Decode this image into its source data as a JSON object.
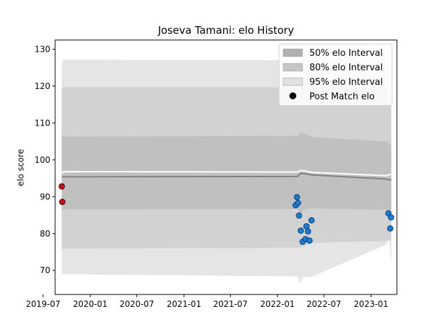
{
  "chart_data": {
    "type": "line",
    "title": "Joseva Tamani: elo History",
    "xlabel": "",
    "ylabel": "elo score",
    "xlim": [
      "2019-08-17",
      "2023-04-12"
    ],
    "ylim": [
      63.5,
      132.5
    ],
    "x_ticks": [
      "2019-07",
      "2020-01",
      "2020-07",
      "2021-01",
      "2021-07",
      "2022-01",
      "2022-07",
      "2023-01"
    ],
    "x_tick_dates": [
      "2019-07-01",
      "2020-01-01",
      "2020-07-01",
      "2021-01-01",
      "2021-07-01",
      "2022-01-01",
      "2022-07-01",
      "2023-01-01"
    ],
    "y_ticks": [
      70,
      80,
      90,
      100,
      110,
      120,
      130
    ],
    "legend_position": "top-right",
    "legend": [
      {
        "label": "50% elo Interval",
        "kind": "patch",
        "color": "#b0b0b0"
      },
      {
        "label": "80% elo Interval",
        "kind": "patch",
        "color": "#c6c6c6"
      },
      {
        "label": "95% elo Interval",
        "kind": "patch",
        "color": "#e2e2e2"
      },
      {
        "label": "Post Match elo",
        "kind": "marker",
        "color": "#000000"
      }
    ],
    "bands": [
      {
        "name": "95% elo Interval",
        "color": "#e5e5e5",
        "x": [
          "2019-09-12",
          "2019-09-20",
          "2022-03-20",
          "2022-04-01",
          "2022-04-08",
          "2022-05-15",
          "2023-03-01",
          "2023-03-12",
          "2023-03-21"
        ],
        "upper": [
          126.0,
          127.2,
          127.0,
          127.3,
          127.3,
          127.0,
          126.8,
          122.0,
          121.8
        ],
        "lower": [
          69.2,
          69.0,
          68.4,
          66.2,
          68.2,
          68.3,
          77.0,
          78.5,
          72.0
        ]
      },
      {
        "name": "80% elo Interval",
        "color": "#d2d2d2",
        "x": [
          "2019-09-12",
          "2019-09-20",
          "2022-03-20",
          "2022-04-08",
          "2022-05-15",
          "2023-03-01",
          "2023-03-12",
          "2023-03-21"
        ],
        "upper": [
          119.7,
          119.7,
          119.7,
          119.9,
          119.7,
          119.3,
          117.0,
          116.8
        ],
        "lower": [
          75.8,
          75.9,
          76.2,
          76.3,
          77.5,
          78.0,
          78.2,
          78.3
        ]
      },
      {
        "name": "50% elo Interval",
        "color": "#c0c0c0",
        "x": [
          "2019-09-12",
          "2019-09-20",
          "2022-03-20",
          "2022-04-01",
          "2022-04-15",
          "2022-05-15",
          "2023-03-01",
          "2023-03-12",
          "2023-03-21"
        ],
        "upper": [
          106.8,
          106.3,
          106.5,
          107.3,
          107.2,
          106.2,
          105.0,
          104.5,
          104.0
        ],
        "lower": [
          86.2,
          86.6,
          86.7,
          85.5,
          86.5,
          86.8,
          86.5,
          86.3,
          86.5
        ]
      }
    ],
    "series": [
      {
        "type": "line",
        "color": "#ffffff",
        "x": [
          "2019-09-12",
          "2019-09-22",
          "2022-03-20",
          "2022-04-01",
          "2022-04-20",
          "2022-05-15",
          "2023-03-01",
          "2023-03-12",
          "2023-03-21"
        ],
        "values": [
          96.5,
          96.8,
          96.7,
          97.1,
          97.0,
          96.6,
          95.7,
          96.0,
          96.0
        ]
      },
      {
        "type": "line",
        "color": "#808080",
        "x": [
          "2019-09-12",
          "2019-09-22",
          "2022-03-20",
          "2022-04-01",
          "2022-04-20",
          "2022-05-15",
          "2023-03-01",
          "2023-03-12",
          "2023-03-21"
        ],
        "values": [
          95.4,
          95.4,
          95.5,
          96.3,
          96.2,
          95.9,
          94.8,
          94.6,
          94.5
        ]
      },
      {
        "name": "Post Match elo",
        "type": "scatter",
        "points": [
          {
            "x": "2019-09-12",
            "y": 92.8,
            "color": "#d0121b",
            "edge": "#2a0000"
          },
          {
            "x": "2019-09-14",
            "y": 88.6,
            "color": "#d0121b",
            "edge": "#2a0000"
          },
          {
            "x": "2022-03-13",
            "y": 87.7,
            "color": "#1f7ec4",
            "edge": "#003c8f"
          },
          {
            "x": "2022-03-18",
            "y": 89.9,
            "color": "#1f7ec4",
            "edge": "#003c8f"
          },
          {
            "x": "2022-03-22",
            "y": 88.3,
            "color": "#1f7ec4",
            "edge": "#003c8f"
          },
          {
            "x": "2022-03-26",
            "y": 84.9,
            "color": "#1f7ec4",
            "edge": "#003c8f"
          },
          {
            "x": "2022-04-02",
            "y": 80.8,
            "color": "#1f7ec4",
            "edge": "#003c8f"
          },
          {
            "x": "2022-04-09",
            "y": 77.8,
            "color": "#1f7ec4",
            "edge": "#003c8f"
          },
          {
            "x": "2022-04-20",
            "y": 78.5,
            "color": "#1f7ec4",
            "edge": "#003c8f"
          },
          {
            "x": "2022-04-24",
            "y": 82.0,
            "color": "#1f7ec4",
            "edge": "#003c8f"
          },
          {
            "x": "2022-04-30",
            "y": 80.6,
            "color": "#1f7ec4",
            "edge": "#003c8f"
          },
          {
            "x": "2022-05-06",
            "y": 78.1,
            "color": "#1f7ec4",
            "edge": "#003c8f"
          },
          {
            "x": "2022-05-14",
            "y": 83.6,
            "color": "#1f7ec4",
            "edge": "#003c8f"
          },
          {
            "x": "2023-03-10",
            "y": 85.5,
            "color": "#1f7ec4",
            "edge": "#003c8f"
          },
          {
            "x": "2023-03-17",
            "y": 81.4,
            "color": "#1f7ec4",
            "edge": "#003c8f"
          },
          {
            "x": "2023-03-20",
            "y": 84.4,
            "color": "#1f7ec4",
            "edge": "#003c8f"
          }
        ]
      }
    ]
  }
}
